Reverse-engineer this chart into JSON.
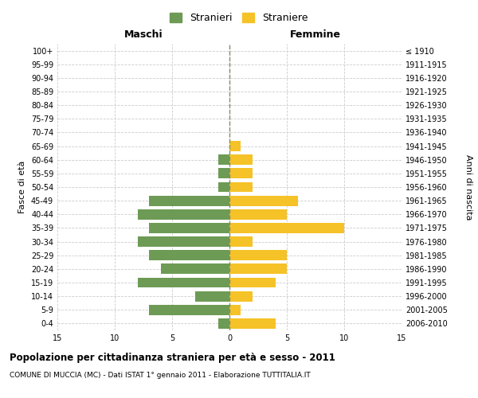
{
  "age_groups": [
    "0-4",
    "5-9",
    "10-14",
    "15-19",
    "20-24",
    "25-29",
    "30-34",
    "35-39",
    "40-44",
    "45-49",
    "50-54",
    "55-59",
    "60-64",
    "65-69",
    "70-74",
    "75-79",
    "80-84",
    "85-89",
    "90-94",
    "95-99",
    "100+"
  ],
  "birth_years": [
    "2006-2010",
    "2001-2005",
    "1996-2000",
    "1991-1995",
    "1986-1990",
    "1981-1985",
    "1976-1980",
    "1971-1975",
    "1966-1970",
    "1961-1965",
    "1956-1960",
    "1951-1955",
    "1946-1950",
    "1941-1945",
    "1936-1940",
    "1931-1935",
    "1926-1930",
    "1921-1925",
    "1916-1920",
    "1911-1915",
    "≤ 1910"
  ],
  "males": [
    1,
    7,
    3,
    8,
    6,
    7,
    8,
    7,
    8,
    7,
    1,
    1,
    1,
    0,
    0,
    0,
    0,
    0,
    0,
    0,
    0
  ],
  "females": [
    4,
    1,
    2,
    4,
    5,
    5,
    2,
    10,
    5,
    6,
    2,
    2,
    2,
    1,
    0,
    0,
    0,
    0,
    0,
    0,
    0
  ],
  "male_color": "#6d9b55",
  "female_color": "#f5c227",
  "background_color": "#ffffff",
  "grid_color": "#cccccc",
  "title": "Popolazione per cittadinanza straniera per età e sesso - 2011",
  "subtitle": "COMUNE DI MUCCIA (MC) - Dati ISTAT 1° gennaio 2011 - Elaborazione TUTTITALIA.IT",
  "xlabel_left": "Maschi",
  "xlabel_right": "Femmine",
  "ylabel_left": "Fasce di età",
  "ylabel_right": "Anni di nascita",
  "legend_male": "Stranieri",
  "legend_female": "Straniere",
  "xlim": 15,
  "bar_height": 0.75,
  "center_line_color": "#888866",
  "center_line_style": "--"
}
